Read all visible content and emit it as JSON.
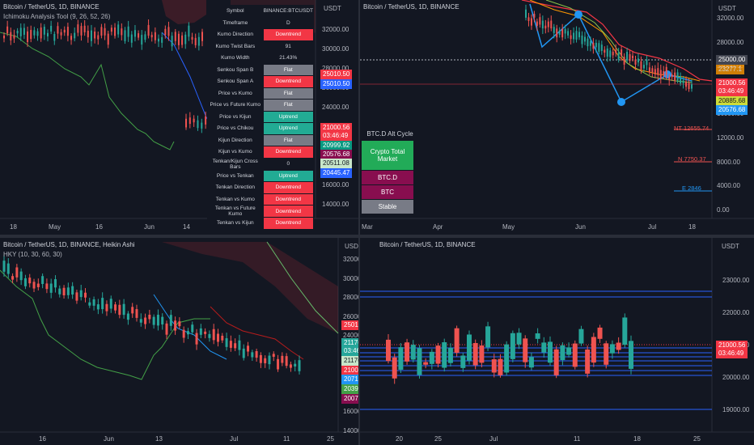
{
  "panes": {
    "tl": {
      "title": "Bitcoin / TetherUS, 1D, BINANCE",
      "indicator": "Ichimoku Analysis Tool (9, 26, 52, 26)",
      "currency": "USDT",
      "price_axis": [
        "32000.00",
        "30000.00",
        "28000.00",
        "26000.00",
        "24000.00",
        "22000.00",
        "20000.00",
        "18000.00",
        "16000.00",
        "14000.00"
      ],
      "time_axis": [
        "18",
        "May",
        "16",
        "Jun",
        "14",
        "Jul",
        "18"
      ],
      "tags": {
        "t1": "25010.50",
        "t2": "25010.50",
        "t3": "21000.56",
        "t3b": "03:46:49",
        "t4": "20999.92",
        "t5": "20576.68",
        "t6": "20511.08",
        "t7": "20445.47"
      },
      "table": [
        {
          "label": "Symbol",
          "value": "BINANCE:BTCUSDT",
          "style": "plain"
        },
        {
          "label": "Timeframe",
          "value": "D",
          "style": "plain"
        },
        {
          "label": "Kumo Direction",
          "value": "Downtrend",
          "style": "down"
        },
        {
          "label": "Kumo Twist Bars",
          "value": "91",
          "style": "plain"
        },
        {
          "label": "Kumo Width",
          "value": "21.43%",
          "style": "plain"
        },
        {
          "label": "Senkou Span B",
          "value": "Flat",
          "style": "flat"
        },
        {
          "label": "Senkou Span A",
          "value": "Downtrend",
          "style": "down"
        },
        {
          "label": "Price vs Kumo",
          "value": "Flat",
          "style": "flat"
        },
        {
          "label": "Price vs Future Kumo",
          "value": "Flat",
          "style": "flat"
        },
        {
          "label": "Price vs Kijun",
          "value": "Uptrend",
          "style": "up"
        },
        {
          "label": "Price vs Chikou",
          "value": "Uptrend",
          "style": "up"
        },
        {
          "label": "Kijun Direction",
          "value": "Flat",
          "style": "flat"
        },
        {
          "label": "Kijun vs Kumo",
          "value": "Downtrend",
          "style": "down"
        },
        {
          "label": "Tenkan/Kijun Cross Bars",
          "value": "0",
          "style": "plain"
        },
        {
          "label": "Price vs Tenkan",
          "value": "Uptrend",
          "style": "up"
        },
        {
          "label": "Tenkan Direction",
          "value": "Downtrend",
          "style": "down"
        },
        {
          "label": "Tenkan vs Kumo",
          "value": "Downtrend",
          "style": "down"
        },
        {
          "label": "Tenkan vs Future Kumo",
          "value": "Downtrend",
          "style": "down"
        },
        {
          "label": "Tenkan vs Kijun",
          "value": "Downtrend",
          "style": "down"
        }
      ]
    },
    "tr": {
      "title": "Bitcoin / TetherUS, 1D, BINANCE",
      "currency": "USDT",
      "price_axis": [
        "32000.00",
        "28000.00",
        "24000.00",
        "20000.00",
        "16000.00",
        "12000.00",
        "8000.00",
        "4000.00",
        "0.00"
      ],
      "time_axis": [
        "Mar",
        "Apr",
        "May",
        "Jun",
        "Jul",
        "18"
      ],
      "tags": {
        "t1": "25000.00",
        "t2": "23277.1",
        "t3": "21000.56",
        "t3b": "03:46:49",
        "t4": "20885.68",
        "t5": "20576.68"
      },
      "labels": {
        "nt": "NT 12655.74",
        "n": "N 7750.37",
        "e": "E 2846"
      },
      "alt_cycle": {
        "title": "BTC.D Alt Cycle",
        "rows": [
          {
            "label": "Crypto Total Market",
            "color": "#22ab58"
          },
          {
            "label": "BTC.D",
            "color": "#880e4f"
          },
          {
            "label": "BTC",
            "color": "#880e4f"
          },
          {
            "label": "Stable",
            "color": "#787b86"
          }
        ]
      }
    },
    "bl": {
      "title": "Bitcoin / TetherUS, 1D, BINANCE, Heikin Ashi",
      "indicator": "HKY (10, 30, 60, 30)",
      "currency": "USDT",
      "price_axis": [
        "32000.00",
        "30000.00",
        "28000.00",
        "26000.00",
        "24000.00",
        "22000.00",
        "20000.00",
        "18000.00",
        "16000.00",
        "14000.00"
      ],
      "time_axis": [
        "16",
        "Jun",
        "13",
        "Jul",
        "11",
        "25"
      ],
      "tags": {
        "t1": "25010.50",
        "t2": "21176.18",
        "t2b": "03:46:49",
        "t3": "21176.18",
        "t4": "21000.56",
        "t5": "20718.16",
        "t6": "20396.92",
        "t7": "20074.68"
      }
    },
    "br": {
      "title": "Bitcoin / TetherUS, 1D, BINANCE",
      "currency": "USDT",
      "price_axis": [
        "23000.00",
        "22000.00",
        "21000.00",
        "20000.00",
        "19000.00"
      ],
      "time_axis": [
        "20",
        "25",
        "Jul",
        "11",
        "18",
        "25"
      ],
      "tags": {
        "t1": "21000.56",
        "t1b": "03:46:49"
      }
    }
  },
  "colors": {
    "up": "#26a69a",
    "down": "#ef5350",
    "bg": "#131722"
  }
}
